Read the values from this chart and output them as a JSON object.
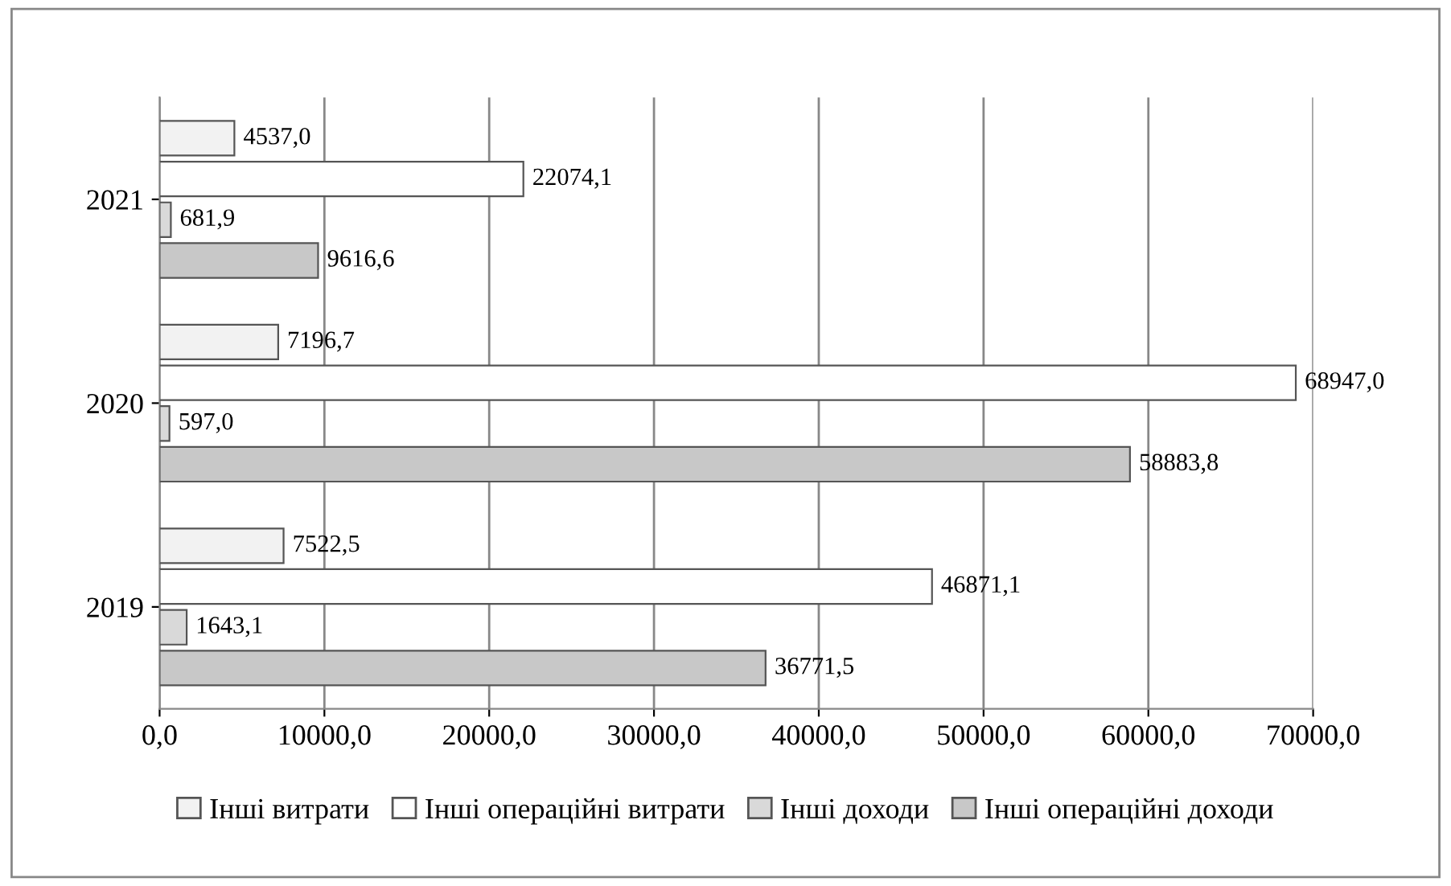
{
  "chart_data": {
    "type": "bar",
    "orientation": "horizontal",
    "categories": [
      "2021",
      "2020",
      "2019"
    ],
    "series": [
      {
        "name": "Інші витрати",
        "color": "#f2f2f2",
        "values": [
          4537.0,
          7196.7,
          7522.5
        ],
        "value_labels": [
          "4537,0",
          "7196,7",
          "7522,5"
        ]
      },
      {
        "name": "Інші операційні витрати",
        "color": "#ffffff",
        "values": [
          22074.1,
          68947.0,
          46871.1
        ],
        "value_labels": [
          "22074,1",
          "68947,0",
          "46871,1"
        ]
      },
      {
        "name": "Інші доходи",
        "color": "#d9d9d9",
        "values": [
          681.9,
          597.0,
          1643.1
        ],
        "value_labels": [
          "681,9",
          "597,0",
          "1643,1"
        ]
      },
      {
        "name": "Інші операційні доходи",
        "color": "#c8c8c8",
        "values": [
          9616.6,
          58883.8,
          36771.5
        ],
        "value_labels": [
          "9616,6",
          "58883,8",
          "36771,5"
        ]
      }
    ],
    "xlim": [
      0,
      70000
    ],
    "xticks": [
      {
        "value": 0,
        "label": "0,0"
      },
      {
        "value": 10000,
        "label": "10000,0"
      },
      {
        "value": 20000,
        "label": "20000,0"
      },
      {
        "value": 30000,
        "label": "30000,0"
      },
      {
        "value": 40000,
        "label": "40000,0"
      },
      {
        "value": 50000,
        "label": "50000,0"
      },
      {
        "value": 60000,
        "label": "60000,0"
      },
      {
        "value": 70000,
        "label": "70000,0"
      }
    ],
    "grid": "x",
    "legend": "bottom"
  }
}
